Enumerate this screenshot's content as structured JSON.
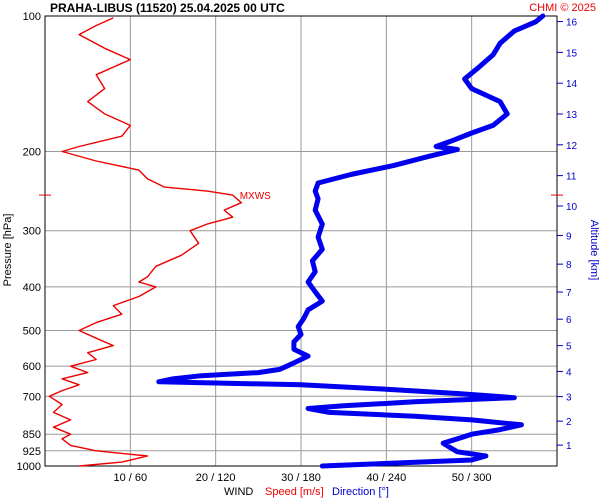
{
  "chart_data": {
    "type": "line",
    "title": "PRAHA-LIBUS (11520)    25.04.2025 00 UTC",
    "copyright": "CHMI © 2025",
    "ylabel_left": "Pressure [hPa]",
    "ylabel_right": "Altitude [km]",
    "xlabel": {
      "prefix": "WIND",
      "speed": "Speed [m/s]",
      "direction": "Direction [°]"
    },
    "pressure_ticks": [
      100,
      200,
      300,
      400,
      500,
      600,
      700,
      850,
      925,
      1000
    ],
    "pressure_tick_labels": [
      "100",
      "200",
      "300",
      "400",
      "500",
      "600",
      "700",
      "850",
      "925",
      "1000"
    ],
    "altitude_ticks": [
      1,
      2,
      3,
      4,
      5,
      6,
      7,
      8,
      9,
      10,
      11,
      12,
      13,
      14,
      15,
      16
    ],
    "altitude_tick_labels": [
      "1",
      "2",
      "3",
      "4",
      "5",
      "6",
      "7",
      "8",
      "9",
      "10",
      "11",
      "12",
      "13",
      "14",
      "15",
      "16"
    ],
    "x_ticks_speed": [
      10,
      20,
      30,
      40,
      50
    ],
    "x_ticks_direction": [
      60,
      120,
      180,
      240,
      300
    ],
    "x_tick_labels": [
      "10 / 60",
      "20 / 120",
      "30 / 180",
      "40 / 240",
      "50 / 300"
    ],
    "xlim_speed": [
      0,
      60
    ],
    "xlim_direction": [
      0,
      360
    ],
    "ylim_pressure": [
      1000,
      100
    ],
    "maxws": {
      "label": "MXWS",
      "pressure": 250,
      "speed": 22
    },
    "series": [
      {
        "name": "Speed [m/s]",
        "color": "#ee0000",
        "points": [
          [
            1000,
            4
          ],
          [
            980,
            9
          ],
          [
            950,
            12
          ],
          [
            925,
            6
          ],
          [
            900,
            3
          ],
          [
            870,
            2
          ],
          [
            850,
            3
          ],
          [
            820,
            1
          ],
          [
            790,
            3
          ],
          [
            760,
            1
          ],
          [
            730,
            2
          ],
          [
            700,
            0.5
          ],
          [
            680,
            2
          ],
          [
            660,
            4
          ],
          [
            640,
            2
          ],
          [
            620,
            5
          ],
          [
            600,
            3
          ],
          [
            580,
            6
          ],
          [
            560,
            5
          ],
          [
            540,
            8
          ],
          [
            520,
            6
          ],
          [
            500,
            4
          ],
          [
            480,
            6
          ],
          [
            460,
            9
          ],
          [
            440,
            8
          ],
          [
            420,
            11
          ],
          [
            400,
            13
          ],
          [
            390,
            11
          ],
          [
            380,
            12
          ],
          [
            360,
            13
          ],
          [
            340,
            16
          ],
          [
            320,
            18
          ],
          [
            300,
            17
          ],
          [
            290,
            19
          ],
          [
            280,
            22
          ],
          [
            270,
            21
          ],
          [
            260,
            23
          ],
          [
            250,
            22
          ],
          [
            245,
            19
          ],
          [
            240,
            14
          ],
          [
            230,
            12
          ],
          [
            220,
            11
          ],
          [
            210,
            6
          ],
          [
            200,
            2
          ],
          [
            195,
            4
          ],
          [
            185,
            9
          ],
          [
            175,
            10
          ],
          [
            165,
            7
          ],
          [
            155,
            5
          ],
          [
            145,
            7
          ],
          [
            135,
            6
          ],
          [
            125,
            10
          ],
          [
            118,
            7
          ],
          [
            110,
            4
          ],
          [
            105,
            6
          ],
          [
            101,
            8
          ]
        ]
      },
      {
        "name": "Direction [°]",
        "color": "#0000ee",
        "points": [
          [
            1000,
            195
          ],
          [
            990,
            230
          ],
          [
            970,
            300
          ],
          [
            950,
            310
          ],
          [
            930,
            290
          ],
          [
            910,
            285
          ],
          [
            890,
            280
          ],
          [
            870,
            290
          ],
          [
            850,
            300
          ],
          [
            830,
            320
          ],
          [
            810,
            335
          ],
          [
            790,
            300
          ],
          [
            775,
            260
          ],
          [
            760,
            200
          ],
          [
            745,
            185
          ],
          [
            735,
            210
          ],
          [
            720,
            260
          ],
          [
            705,
            330
          ],
          [
            690,
            290
          ],
          [
            675,
            240
          ],
          [
            660,
            180
          ],
          [
            650,
            80
          ],
          [
            640,
            90
          ],
          [
            630,
            110
          ],
          [
            620,
            150
          ],
          [
            610,
            165
          ],
          [
            600,
            170
          ],
          [
            590,
            175
          ],
          [
            570,
            185
          ],
          [
            550,
            175
          ],
          [
            530,
            175
          ],
          [
            510,
            180
          ],
          [
            490,
            178
          ],
          [
            470,
            182
          ],
          [
            450,
            185
          ],
          [
            430,
            195
          ],
          [
            410,
            190
          ],
          [
            390,
            185
          ],
          [
            370,
            190
          ],
          [
            350,
            188
          ],
          [
            330,
            195
          ],
          [
            310,
            192
          ],
          [
            290,
            195
          ],
          [
            270,
            190
          ],
          [
            255,
            192
          ],
          [
            245,
            190
          ],
          [
            235,
            192
          ],
          [
            225,
            215
          ],
          [
            215,
            245
          ],
          [
            205,
            270
          ],
          [
            198,
            290
          ],
          [
            195,
            275
          ],
          [
            190,
            285
          ],
          [
            182,
            300
          ],
          [
            175,
            315
          ],
          [
            165,
            325
          ],
          [
            155,
            320
          ],
          [
            145,
            300
          ],
          [
            138,
            295
          ],
          [
            130,
            305
          ],
          [
            122,
            315
          ],
          [
            115,
            320
          ],
          [
            108,
            330
          ],
          [
            103,
            345
          ],
          [
            100,
            350
          ]
        ]
      }
    ]
  }
}
